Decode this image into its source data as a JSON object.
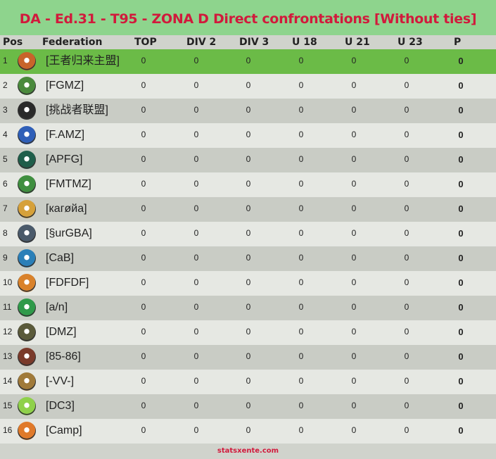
{
  "title": "DA - Ed.31 - T95 - ZONA D Direct confrontations [Without ties]",
  "columns": {
    "pos": "Pos",
    "federation": "Federation",
    "top": "TOP",
    "div2": "DIV 2",
    "div3": "DIV 3",
    "u18": "U 18",
    "u21": "U 21",
    "u23": "U 23",
    "p": "P"
  },
  "rows": [
    {
      "pos": "1",
      "federation": "[王者归来主盟]",
      "logo_icon": "federation-crest-icon",
      "logo_color": "#c8642a",
      "top": "0",
      "div2": "0",
      "div3": "0",
      "u18": "0",
      "u21": "0",
      "u23": "0",
      "p": "0"
    },
    {
      "pos": "2",
      "federation": "[FGMZ]",
      "logo_icon": "federation-crest-icon",
      "logo_color": "#4a8a3c",
      "top": "0",
      "div2": "0",
      "div3": "0",
      "u18": "0",
      "u21": "0",
      "u23": "0",
      "p": "0"
    },
    {
      "pos": "3",
      "federation": "[挑战者联盟]",
      "logo_icon": "federation-crest-icon",
      "logo_color": "#2a2a2a",
      "top": "0",
      "div2": "0",
      "div3": "0",
      "u18": "0",
      "u21": "0",
      "u23": "0",
      "p": "0"
    },
    {
      "pos": "4",
      "federation": "[F.AMZ]",
      "logo_icon": "federation-crest-icon",
      "logo_color": "#2f5fb8",
      "top": "0",
      "div2": "0",
      "div3": "0",
      "u18": "0",
      "u21": "0",
      "u23": "0",
      "p": "0"
    },
    {
      "pos": "5",
      "federation": "[APFG]",
      "logo_icon": "federation-crest-icon",
      "logo_color": "#1f5e4a",
      "top": "0",
      "div2": "0",
      "div3": "0",
      "u18": "0",
      "u21": "0",
      "u23": "0",
      "p": "0"
    },
    {
      "pos": "6",
      "federation": "[FMTMZ]",
      "logo_icon": "federation-crest-icon",
      "logo_color": "#3f8f3f",
      "top": "0",
      "div2": "0",
      "div3": "0",
      "u18": "0",
      "u21": "0",
      "u23": "0",
      "p": "0"
    },
    {
      "pos": "7",
      "federation": "[кагøйа]",
      "logo_icon": "federation-crest-icon",
      "logo_color": "#d6a13a",
      "top": "0",
      "div2": "0",
      "div3": "0",
      "u18": "0",
      "u21": "0",
      "u23": "0",
      "p": "0"
    },
    {
      "pos": "8",
      "federation": "[§urGBA]",
      "logo_icon": "federation-crest-icon",
      "logo_color": "#4a5a6a",
      "top": "0",
      "div2": "0",
      "div3": "0",
      "u18": "0",
      "u21": "0",
      "u23": "0",
      "p": "0"
    },
    {
      "pos": "9",
      "federation": "[CaB]",
      "logo_icon": "federation-crest-icon",
      "logo_color": "#2a7fb8",
      "top": "0",
      "div2": "0",
      "div3": "0",
      "u18": "0",
      "u21": "0",
      "u23": "0",
      "p": "0"
    },
    {
      "pos": "10",
      "federation": "[FDFDF]",
      "logo_icon": "federation-crest-icon",
      "logo_color": "#d9822b",
      "top": "0",
      "div2": "0",
      "div3": "0",
      "u18": "0",
      "u21": "0",
      "u23": "0",
      "p": "0"
    },
    {
      "pos": "11",
      "federation": "[a/n]",
      "logo_icon": "federation-crest-icon",
      "logo_color": "#2f9a4a",
      "top": "0",
      "div2": "0",
      "div3": "0",
      "u18": "0",
      "u21": "0",
      "u23": "0",
      "p": "0"
    },
    {
      "pos": "12",
      "federation": "[DMZ]",
      "logo_icon": "federation-crest-icon",
      "logo_color": "#5a5a3a",
      "top": "0",
      "div2": "0",
      "div3": "0",
      "u18": "0",
      "u21": "0",
      "u23": "0",
      "p": "0"
    },
    {
      "pos": "13",
      "federation": "[85-86]",
      "logo_icon": "federation-crest-icon",
      "logo_color": "#7a3a2a",
      "top": "0",
      "div2": "0",
      "div3": "0",
      "u18": "0",
      "u21": "0",
      "u23": "0",
      "p": "0"
    },
    {
      "pos": "14",
      "federation": "[-VV-]",
      "logo_icon": "federation-crest-icon",
      "logo_color": "#a07a3a",
      "top": "0",
      "div2": "0",
      "div3": "0",
      "u18": "0",
      "u21": "0",
      "u23": "0",
      "p": "0"
    },
    {
      "pos": "15",
      "federation": "[DC3]",
      "logo_icon": "federation-crest-icon",
      "logo_color": "#8fd14a",
      "top": "0",
      "div2": "0",
      "div3": "0",
      "u18": "0",
      "u21": "0",
      "u23": "0",
      "p": "0"
    },
    {
      "pos": "16",
      "federation": "[Camp]",
      "logo_icon": "federation-crest-icon",
      "logo_color": "#e07a2a",
      "top": "0",
      "div2": "0",
      "div3": "0",
      "u18": "0",
      "u21": "0",
      "u23": "0",
      "p": "0"
    }
  ],
  "footer": "statsxente.com",
  "colors": {
    "title_bg": "#8ed48d",
    "title_text": "#d11a3c",
    "first_row_bg": "#6bbb47",
    "row_light": "#e6e8e3",
    "row_dark": "#c9ccc5"
  }
}
